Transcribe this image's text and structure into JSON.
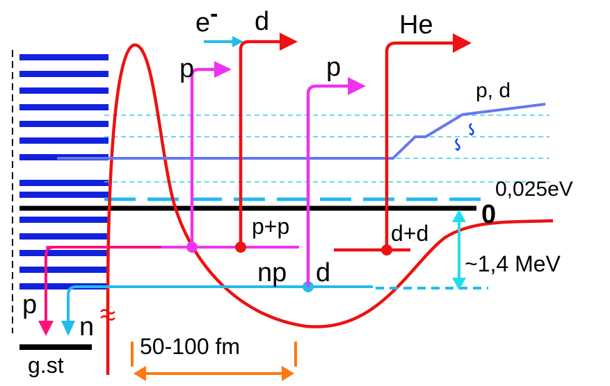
{
  "labels": {
    "electron_base": "e",
    "electron_sup": "-",
    "d_top": "d",
    "he": "He",
    "p_left": "p",
    "p_mid": "p",
    "p_d_right": "p, d",
    "energy_0025": "0,025eV",
    "zero": "0",
    "pp": "p+p",
    "dd": "d+d",
    "np": "np",
    "d_bound": "d",
    "mev": "~1,4 MeV",
    "p_bottom": "p",
    "n_bottom": "n",
    "gst": "g.st",
    "fm": "50-100 fm"
  },
  "colors": {
    "potential_red": "#ee1111",
    "level_blue": "#1122dd",
    "magenta": "#ee33ee",
    "cyan": "#22bbee",
    "slate_blue": "#6677ee",
    "black": "#000000",
    "pink": "#ff1177",
    "orange": "#ff7711"
  }
}
